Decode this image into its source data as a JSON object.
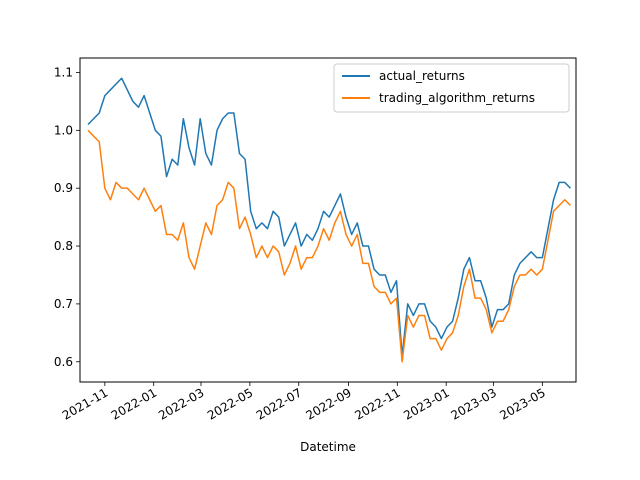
{
  "chart_data": {
    "type": "line",
    "title": "",
    "xlabel": "Datetime",
    "ylabel": "",
    "x_type": "date",
    "xlim": [
      "2021-10-01",
      "2023-06-12"
    ],
    "ylim": [
      0.565,
      1.125
    ],
    "yticks": [
      0.6,
      0.7,
      0.8,
      0.9,
      1.0,
      1.1
    ],
    "ytick_labels": [
      "0.6",
      "0.7",
      "0.8",
      "0.9",
      "1.0",
      "1.1"
    ],
    "xticks": [
      "2021-11-01",
      "2022-01-01",
      "2022-03-01",
      "2022-05-01",
      "2022-07-01",
      "2022-09-01",
      "2022-11-01",
      "2023-01-01",
      "2023-03-01",
      "2023-05-01"
    ],
    "xtick_labels": [
      "2021-11",
      "2022-01",
      "2022-03",
      "2022-05",
      "2022-07",
      "2022-09",
      "2022-11",
      "2023-01",
      "2023-03",
      "2023-05"
    ],
    "grid": false,
    "legend_position": "top-right",
    "series": [
      {
        "name": "actual_returns",
        "color": "#1f77b4",
        "x": [
          "2021-10-11",
          "2021-10-18",
          "2021-10-25",
          "2021-11-01",
          "2021-11-08",
          "2021-11-15",
          "2021-11-22",
          "2021-11-29",
          "2021-12-06",
          "2021-12-13",
          "2021-12-20",
          "2021-12-27",
          "2022-01-03",
          "2022-01-10",
          "2022-01-17",
          "2022-01-24",
          "2022-01-31",
          "2022-02-07",
          "2022-02-14",
          "2022-02-21",
          "2022-02-28",
          "2022-03-07",
          "2022-03-14",
          "2022-03-21",
          "2022-03-28",
          "2022-04-04",
          "2022-04-11",
          "2022-04-18",
          "2022-04-25",
          "2022-05-02",
          "2022-05-09",
          "2022-05-16",
          "2022-05-23",
          "2022-05-30",
          "2022-06-06",
          "2022-06-13",
          "2022-06-20",
          "2022-06-27",
          "2022-07-04",
          "2022-07-11",
          "2022-07-18",
          "2022-07-25",
          "2022-08-01",
          "2022-08-08",
          "2022-08-15",
          "2022-08-22",
          "2022-08-29",
          "2022-09-05",
          "2022-09-12",
          "2022-09-19",
          "2022-09-26",
          "2022-10-03",
          "2022-10-10",
          "2022-10-17",
          "2022-10-24",
          "2022-10-31",
          "2022-11-07",
          "2022-11-14",
          "2022-11-21",
          "2022-11-28",
          "2022-12-05",
          "2022-12-12",
          "2022-12-19",
          "2022-12-26",
          "2023-01-02",
          "2023-01-09",
          "2023-01-16",
          "2023-01-23",
          "2023-01-30",
          "2023-02-06",
          "2023-02-13",
          "2023-02-20",
          "2023-02-27",
          "2023-03-06",
          "2023-03-13",
          "2023-03-20",
          "2023-03-27",
          "2023-04-03",
          "2023-04-10",
          "2023-04-17",
          "2023-04-24",
          "2023-05-01",
          "2023-05-08",
          "2023-05-15",
          "2023-05-22",
          "2023-05-29",
          "2023-06-05"
        ],
        "values": [
          1.01,
          1.02,
          1.03,
          1.06,
          1.07,
          1.08,
          1.09,
          1.07,
          1.05,
          1.04,
          1.06,
          1.03,
          1.0,
          0.99,
          0.92,
          0.95,
          0.94,
          1.02,
          0.97,
          0.94,
          1.02,
          0.96,
          0.94,
          1.0,
          1.02,
          1.03,
          1.03,
          0.96,
          0.95,
          0.86,
          0.83,
          0.84,
          0.83,
          0.86,
          0.85,
          0.8,
          0.82,
          0.84,
          0.8,
          0.82,
          0.81,
          0.83,
          0.86,
          0.85,
          0.87,
          0.89,
          0.85,
          0.82,
          0.84,
          0.8,
          0.8,
          0.76,
          0.75,
          0.75,
          0.72,
          0.74,
          0.61,
          0.7,
          0.68,
          0.7,
          0.7,
          0.67,
          0.66,
          0.64,
          0.66,
          0.67,
          0.71,
          0.76,
          0.78,
          0.74,
          0.74,
          0.71,
          0.66,
          0.69,
          0.69,
          0.7,
          0.75,
          0.77,
          0.78,
          0.79,
          0.78,
          0.78,
          0.83,
          0.88,
          0.91,
          0.91,
          0.9
        ]
      },
      {
        "name": "trading_algorithm_returns",
        "color": "#ff7f0e",
        "x": [
          "2021-10-11",
          "2021-10-18",
          "2021-10-25",
          "2021-11-01",
          "2021-11-08",
          "2021-11-15",
          "2021-11-22",
          "2021-11-29",
          "2021-12-06",
          "2021-12-13",
          "2021-12-20",
          "2021-12-27",
          "2022-01-03",
          "2022-01-10",
          "2022-01-17",
          "2022-01-24",
          "2022-01-31",
          "2022-02-07",
          "2022-02-14",
          "2022-02-21",
          "2022-02-28",
          "2022-03-07",
          "2022-03-14",
          "2022-03-21",
          "2022-03-28",
          "2022-04-04",
          "2022-04-11",
          "2022-04-18",
          "2022-04-25",
          "2022-05-02",
          "2022-05-09",
          "2022-05-16",
          "2022-05-23",
          "2022-05-30",
          "2022-06-06",
          "2022-06-13",
          "2022-06-20",
          "2022-06-27",
          "2022-07-04",
          "2022-07-11",
          "2022-07-18",
          "2022-07-25",
          "2022-08-01",
          "2022-08-08",
          "2022-08-15",
          "2022-08-22",
          "2022-08-29",
          "2022-09-05",
          "2022-09-12",
          "2022-09-19",
          "2022-09-26",
          "2022-10-03",
          "2022-10-10",
          "2022-10-17",
          "2022-10-24",
          "2022-10-31",
          "2022-11-07",
          "2022-11-14",
          "2022-11-21",
          "2022-11-28",
          "2022-12-05",
          "2022-12-12",
          "2022-12-19",
          "2022-12-26",
          "2023-01-02",
          "2023-01-09",
          "2023-01-16",
          "2023-01-23",
          "2023-01-30",
          "2023-02-06",
          "2023-02-13",
          "2023-02-20",
          "2023-02-27",
          "2023-03-06",
          "2023-03-13",
          "2023-03-20",
          "2023-03-27",
          "2023-04-03",
          "2023-04-10",
          "2023-04-17",
          "2023-04-24",
          "2023-05-01",
          "2023-05-08",
          "2023-05-15",
          "2023-05-22",
          "2023-05-29",
          "2023-06-05"
        ],
        "values": [
          1.0,
          0.99,
          0.98,
          0.9,
          0.88,
          0.91,
          0.9,
          0.9,
          0.89,
          0.88,
          0.9,
          0.88,
          0.86,
          0.87,
          0.82,
          0.82,
          0.81,
          0.84,
          0.78,
          0.76,
          0.8,
          0.84,
          0.82,
          0.87,
          0.88,
          0.91,
          0.9,
          0.83,
          0.85,
          0.82,
          0.78,
          0.8,
          0.78,
          0.8,
          0.79,
          0.75,
          0.77,
          0.8,
          0.76,
          0.78,
          0.78,
          0.8,
          0.83,
          0.81,
          0.84,
          0.86,
          0.82,
          0.8,
          0.82,
          0.77,
          0.77,
          0.73,
          0.72,
          0.72,
          0.7,
          0.71,
          0.6,
          0.68,
          0.66,
          0.68,
          0.68,
          0.64,
          0.64,
          0.62,
          0.64,
          0.65,
          0.68,
          0.73,
          0.76,
          0.71,
          0.71,
          0.69,
          0.65,
          0.67,
          0.67,
          0.69,
          0.73,
          0.75,
          0.75,
          0.76,
          0.75,
          0.76,
          0.81,
          0.86,
          0.87,
          0.88,
          0.87
        ]
      }
    ]
  }
}
